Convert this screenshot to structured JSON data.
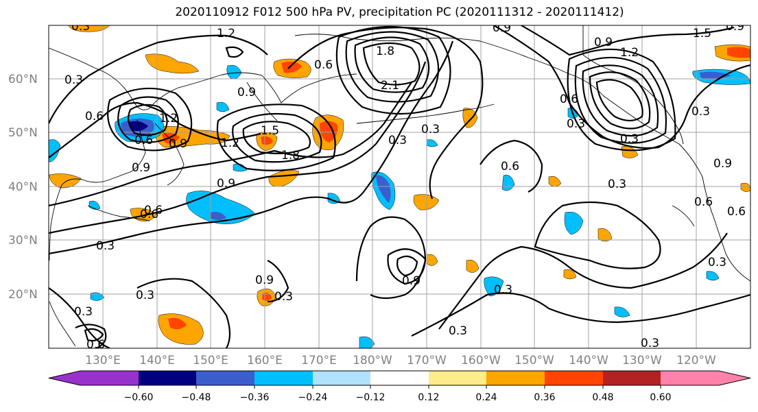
{
  "title": "2020110912 F012 500 hPa PV, precipitation PC (2020111312 - 2020111412)",
  "map": {
    "lat_labels": [
      "60°N",
      "50°N",
      "40°N",
      "30°N",
      "20°N"
    ],
    "lon_labels": [
      "130°E",
      "140°E",
      "150°E",
      "160°E",
      "170°E",
      "180°W",
      "170°W",
      "160°W",
      "150°W",
      "140°W",
      "130°W",
      "120°W"
    ],
    "contour_labels": [
      "0.3",
      "1.2",
      "0.9",
      "0.9",
      "0.6",
      "1.8",
      "2.1",
      "0.6",
      "0.9",
      "1.2",
      "0.3",
      "0.3",
      "0.6",
      "0.9",
      "1.2",
      "1.5",
      "1.8",
      "0.3",
      "0.9",
      "0.6",
      "0.3",
      "0.9",
      "0.3",
      "0.3",
      "0.9",
      "0.3",
      "0.6",
      "0.6",
      "0.9",
      "0.6",
      "0.3",
      "0.3",
      "0.3",
      "0.3",
      "0.3",
      "1.2",
      "1.5",
      "0.9",
      "0.6",
      "0.9",
      "0.3",
      "0.3",
      "0.6",
      "0.6",
      "0.3"
    ]
  },
  "colorbar": {
    "colors": [
      "#9932cc",
      "#000080",
      "#3a5fcd",
      "#00bfff",
      "#b0e2ff",
      "#ffffff",
      "#ffec8b",
      "#ffa500",
      "#ff4500",
      "#b22222",
      "#ff82ab"
    ],
    "tick_labels": [
      "−0.60",
      "−0.48",
      "−0.36",
      "−0.24",
      "−0.12",
      "0.12",
      "0.24",
      "0.36",
      "0.48",
      "0.60"
    ]
  }
}
